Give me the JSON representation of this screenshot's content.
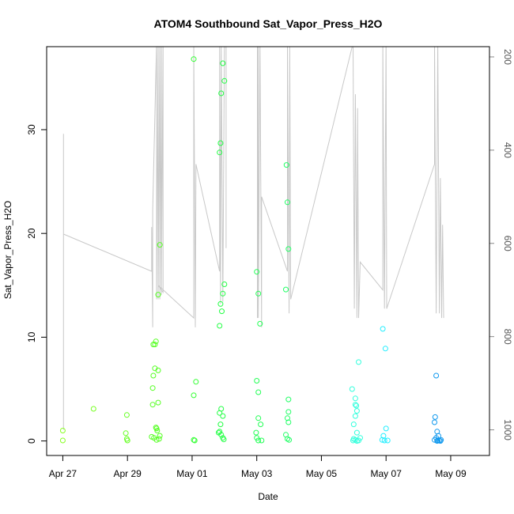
{
  "chart_data": {
    "type": "scatter",
    "title": "ATOM4 Southbound Sat_Vapor_Press_H2O",
    "xlabel": "Date",
    "ylabel": "Sat_Vapor_Press_H2O",
    "x_ticks": [
      "Apr 27",
      "Apr 29",
      "May 01",
      "May 03",
      "May 05",
      "May 07",
      "May 09"
    ],
    "y_ticks": [
      "0",
      "10",
      "20",
      "30"
    ],
    "y2_ticks": [
      "200",
      "400",
      "600",
      "800",
      "1000"
    ],
    "xlim": [
      -0.5,
      13.2
    ],
    "ylim": [
      -1.4,
      38.0
    ],
    "y2lim": [
      1055,
      178
    ],
    "grid": false,
    "points": [
      [
        0.0,
        0.05,
        "#88ff22"
      ],
      [
        0.0,
        1.0,
        "#88ff22"
      ],
      [
        0.95,
        3.1,
        "#77ff22"
      ],
      [
        1.95,
        0.75,
        "#66ff22"
      ],
      [
        1.98,
        2.5,
        "#66ff22"
      ],
      [
        1.98,
        0.2,
        "#66ff22"
      ],
      [
        2.0,
        0.05,
        "#66ff22"
      ],
      [
        2.75,
        0.4,
        "#55ff22"
      ],
      [
        2.78,
        3.5,
        "#55ff22"
      ],
      [
        2.78,
        5.1,
        "#55ff22"
      ],
      [
        2.8,
        6.3,
        "#55ff22"
      ],
      [
        2.8,
        9.3,
        "#55ff22"
      ],
      [
        2.85,
        9.3,
        "#55ff22"
      ],
      [
        2.85,
        7.0,
        "#55ff22"
      ],
      [
        2.88,
        9.6,
        "#55ff22"
      ],
      [
        2.88,
        1.3,
        "#55ff22"
      ],
      [
        2.9,
        0.1,
        "#55ff22"
      ],
      [
        2.92,
        1.0,
        "#55ff22"
      ],
      [
        2.95,
        3.7,
        "#55ff22"
      ],
      [
        2.95,
        6.8,
        "#55ff22"
      ],
      [
        2.95,
        14.1,
        "#55ff22"
      ],
      [
        2.98,
        0.2,
        "#55ff22"
      ],
      [
        3.0,
        0.5,
        "#55ff22"
      ],
      [
        3.0,
        18.9,
        "#55ff22"
      ],
      [
        2.82,
        0.3,
        "#55ff22"
      ],
      [
        2.9,
        1.2,
        "#55ff22"
      ],
      [
        4.05,
        36.8,
        "#33ff33"
      ],
      [
        4.05,
        4.4,
        "#33ff33"
      ],
      [
        4.05,
        0.1,
        "#33ff33"
      ],
      [
        4.12,
        5.7,
        "#33ff33"
      ],
      [
        4.08,
        0.05,
        "#33ff33"
      ],
      [
        4.85,
        27.8,
        "#22ff44"
      ],
      [
        4.85,
        11.1,
        "#22ff44"
      ],
      [
        4.88,
        28.7,
        "#22ff44"
      ],
      [
        4.88,
        13.2,
        "#22ff44"
      ],
      [
        4.9,
        33.5,
        "#22ff44"
      ],
      [
        4.92,
        12.5,
        "#22ff44"
      ],
      [
        4.95,
        36.4,
        "#22ff44"
      ],
      [
        4.95,
        14.2,
        "#22ff44"
      ],
      [
        5.0,
        34.7,
        "#22ff44"
      ],
      [
        5.0,
        15.1,
        "#22ff44"
      ],
      [
        4.9,
        3.1,
        "#22ff44"
      ],
      [
        4.85,
        2.7,
        "#22ff44"
      ],
      [
        4.95,
        2.4,
        "#22ff44"
      ],
      [
        4.88,
        1.6,
        "#22ff44"
      ],
      [
        4.85,
        0.9,
        "#22ff44"
      ],
      [
        4.9,
        0.6,
        "#22ff44"
      ],
      [
        4.95,
        0.3,
        "#22ff44"
      ],
      [
        4.98,
        0.15,
        "#22ff44"
      ],
      [
        4.82,
        0.8,
        "#22ff44"
      ],
      [
        6.0,
        5.8,
        "#22ff55"
      ],
      [
        6.05,
        4.7,
        "#22ff55"
      ],
      [
        6.05,
        2.2,
        "#22ff55"
      ],
      [
        6.0,
        16.3,
        "#22ff55"
      ],
      [
        6.05,
        14.2,
        "#22ff55"
      ],
      [
        6.1,
        11.3,
        "#22ff55"
      ],
      [
        6.12,
        1.6,
        "#22ff55"
      ],
      [
        5.98,
        0.8,
        "#22ff55"
      ],
      [
        6.0,
        0.3,
        "#22ff55"
      ],
      [
        6.05,
        0.05,
        "#22ff55"
      ],
      [
        6.15,
        0.05,
        "#22ff55"
      ],
      [
        6.92,
        26.6,
        "#22ff66"
      ],
      [
        6.95,
        23.0,
        "#22ff66"
      ],
      [
        6.98,
        18.5,
        "#22ff66"
      ],
      [
        6.9,
        14.6,
        "#22ff66"
      ],
      [
        6.98,
        4.0,
        "#22ff66"
      ],
      [
        6.98,
        2.8,
        "#22ff66"
      ],
      [
        6.95,
        2.2,
        "#22ff66"
      ],
      [
        6.98,
        1.8,
        "#22ff66"
      ],
      [
        6.9,
        0.6,
        "#22ff66"
      ],
      [
        6.95,
        0.2,
        "#22ff66"
      ],
      [
        7.0,
        0.1,
        "#22ff66"
      ],
      [
        8.95,
        5.0,
        "#33ffdd"
      ],
      [
        9.05,
        4.1,
        "#33ffdd"
      ],
      [
        9.05,
        3.5,
        "#33ffdd"
      ],
      [
        9.08,
        3.4,
        "#33ffdd"
      ],
      [
        9.1,
        2.9,
        "#33ffdd"
      ],
      [
        9.05,
        2.4,
        "#33ffdd"
      ],
      [
        9.15,
        7.6,
        "#33ffdd"
      ],
      [
        9.0,
        1.6,
        "#33ffdd"
      ],
      [
        9.1,
        0.8,
        "#33ffdd"
      ],
      [
        9.0,
        0.2,
        "#33ffdd"
      ],
      [
        9.05,
        0.1,
        "#33ffdd"
      ],
      [
        9.1,
        0.0,
        "#33ffdd"
      ],
      [
        9.15,
        0.05,
        "#33ffdd"
      ],
      [
        9.2,
        0.3,
        "#33ffdd"
      ],
      [
        8.98,
        0.05,
        "#33ffdd"
      ],
      [
        9.9,
        10.8,
        "#22eeff"
      ],
      [
        9.98,
        8.9,
        "#22eeff"
      ],
      [
        10.0,
        1.2,
        "#22eeff"
      ],
      [
        9.92,
        0.5,
        "#22eeff"
      ],
      [
        9.95,
        0.05,
        "#22eeff"
      ],
      [
        10.05,
        0.05,
        "#22eeff"
      ],
      [
        9.88,
        0.1,
        "#22eeff"
      ],
      [
        11.55,
        6.3,
        "#1199ee"
      ],
      [
        11.52,
        2.3,
        "#1199ee"
      ],
      [
        11.5,
        1.8,
        "#1199ee"
      ],
      [
        11.58,
        0.9,
        "#1199ee"
      ],
      [
        11.62,
        0.5,
        "#1199ee"
      ],
      [
        11.55,
        0.3,
        "#1199ee"
      ],
      [
        11.5,
        0.1,
        "#1199ee"
      ],
      [
        11.58,
        0.0,
        "#1199ee"
      ],
      [
        11.65,
        0.05,
        "#1199ee"
      ],
      [
        11.7,
        0.1,
        "#1199ee"
      ],
      [
        11.6,
        0.05,
        "#1199ee"
      ],
      [
        11.68,
        0.0,
        "#1199ee"
      ]
    ],
    "line_color": "#c8c8c8",
    "line_series": [
      [
        [
          0.02,
          1000
        ],
        [
          0.02,
          365
        ],
        [
          0.02,
          580
        ],
        [
          2.75,
          660
        ],
        [
          2.75,
          565
        ],
        [
          2.78,
          780
        ],
        [
          2.78,
          528
        ],
        [
          2.9,
          170
        ],
        [
          2.9,
          720
        ],
        [
          2.95,
          170
        ],
        [
          2.95,
          720
        ],
        [
          3.0,
          170
        ],
        [
          3.0,
          720
        ],
        [
          3.05,
          170
        ],
        [
          3.05,
          710
        ],
        [
          3.1,
          170
        ],
        [
          3.1,
          705
        ],
        [
          2.95,
          690
        ],
        [
          4.05,
          760
        ],
        [
          4.05,
          170
        ],
        [
          4.1,
          780
        ],
        [
          4.12,
          430
        ],
        [
          4.85,
          660
        ],
        [
          4.85,
          170
        ],
        [
          4.88,
          730
        ],
        [
          4.9,
          170
        ],
        [
          4.95,
          725
        ],
        [
          5.0,
          170
        ],
        [
          5.05,
          170
        ],
        [
          5.05,
          610
        ]
      ],
      [
        [
          6.02,
          170
        ],
        [
          6.02,
          760
        ],
        [
          6.05,
          170
        ],
        [
          6.05,
          760
        ],
        [
          6.1,
          170
        ],
        [
          6.15,
          780
        ],
        [
          6.15,
          500
        ],
        [
          6.95,
          660
        ],
        [
          6.95,
          170
        ],
        [
          7.0,
          750
        ],
        [
          7.02,
          170
        ],
        [
          7.05,
          720
        ],
        [
          8.98,
          170
        ],
        [
          9.02,
          740
        ],
        [
          9.05,
          280
        ],
        [
          9.1,
          760
        ],
        [
          9.12,
          310
        ],
        [
          9.15,
          760
        ],
        [
          9.2,
          640
        ],
        [
          9.9,
          700
        ],
        [
          9.9,
          170
        ],
        [
          9.95,
          740
        ],
        [
          10.0,
          170
        ],
        [
          10.02,
          740
        ],
        [
          11.5,
          430
        ],
        [
          11.5,
          170
        ],
        [
          11.55,
          750
        ],
        [
          11.6,
          170
        ],
        [
          11.65,
          750
        ],
        [
          11.68,
          460
        ],
        [
          11.72,
          760
        ],
        [
          11.75,
          560
        ],
        [
          11.78,
          760
        ]
      ]
    ]
  }
}
